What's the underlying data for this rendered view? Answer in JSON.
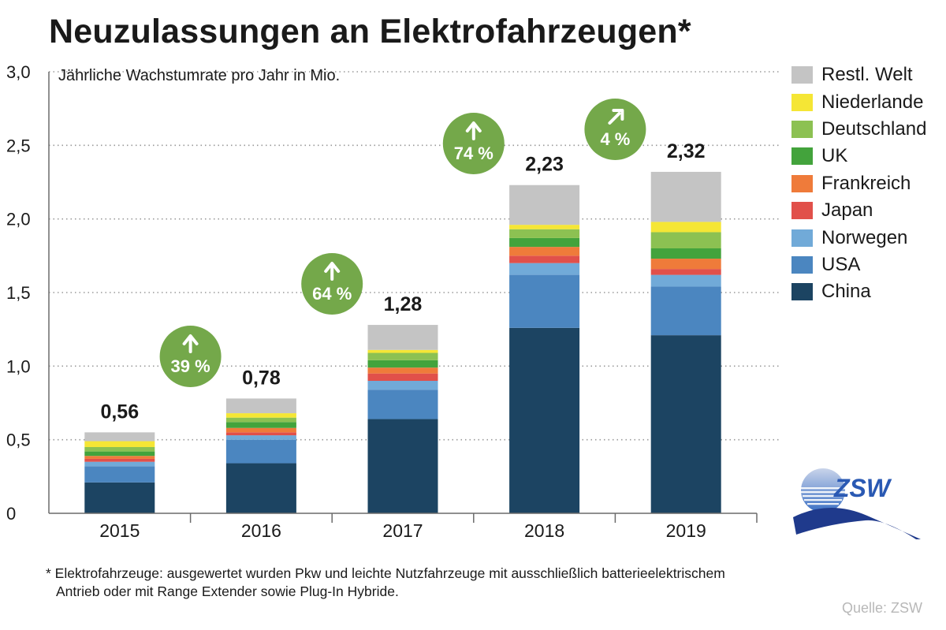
{
  "title": "Neuzulassungen an Elektrofahrzeugen*",
  "footnote": {
    "line1": "* Elektrofahrzeuge: ausgewertet wurden Pkw und leichte Nutzfahrzeuge mit ausschließlich batterieelektrischem",
    "line2": "Antrieb oder mit Range Extender sowie Plug-In Hybride."
  },
  "source": "Quelle: ZSW",
  "logo": {
    "text": "ZSW",
    "colors": [
      "#1f3a8c",
      "#3a6fc4",
      "#c9d4ea"
    ]
  },
  "growth_badges": [
    {
      "label": "39 %",
      "between": [
        "2015",
        "2016"
      ],
      "icon": "arrow-up-icon",
      "color": "#74a84a"
    },
    {
      "label": "64 %",
      "between": [
        "2016",
        "2017"
      ],
      "icon": "arrow-up-icon",
      "color": "#74a84a"
    },
    {
      "label": "74 %",
      "between": [
        "2017",
        "2018"
      ],
      "icon": "arrow-up-icon",
      "color": "#74a84a"
    },
    {
      "label": "4 %",
      "between": [
        "2018",
        "2019"
      ],
      "icon": "arrow-up-right-icon",
      "color": "#74a84a"
    }
  ],
  "chart_data": {
    "type": "bar",
    "stacked": true,
    "title": "Neuzulassungen an Elektrofahrzeugen*",
    "ylabel": "Jährliche Wachstumrate pro Jahr in Mio.",
    "xlabel": "",
    "categories": [
      "2015",
      "2016",
      "2017",
      "2018",
      "2019"
    ],
    "ylim": [
      0,
      3.0
    ],
    "yticks": [
      0,
      0.5,
      1.0,
      1.5,
      2.0,
      2.5,
      3.0
    ],
    "ytick_labels": [
      "0",
      "0,5",
      "1,0",
      "1,5",
      "2,0",
      "2,5",
      "3,0"
    ],
    "grid": "horizontal dotted",
    "legend_position": "right",
    "totals": [
      "0,56",
      "0,78",
      "1,28",
      "2,23",
      "2,32"
    ],
    "series": [
      {
        "name": "China",
        "color": "#1c4462",
        "values": [
          0.21,
          0.34,
          0.64,
          1.26,
          1.21
        ]
      },
      {
        "name": "USA",
        "color": "#4b86c0",
        "values": [
          0.11,
          0.16,
          0.2,
          0.36,
          0.33
        ]
      },
      {
        "name": "Norwegen",
        "color": "#71aad8",
        "values": [
          0.03,
          0.03,
          0.06,
          0.08,
          0.08
        ]
      },
      {
        "name": "Japan",
        "color": "#e1504a",
        "values": [
          0.02,
          0.02,
          0.05,
          0.05,
          0.04
        ]
      },
      {
        "name": "Frankreich",
        "color": "#ef7b3a",
        "values": [
          0.02,
          0.03,
          0.04,
          0.06,
          0.07
        ]
      },
      {
        "name": "UK",
        "color": "#43a33c",
        "values": [
          0.03,
          0.04,
          0.05,
          0.06,
          0.07
        ]
      },
      {
        "name": "Deutschland",
        "color": "#8cc152",
        "values": [
          0.03,
          0.03,
          0.05,
          0.06,
          0.11
        ]
      },
      {
        "name": "Niederlande",
        "color": "#f5e635",
        "values": [
          0.04,
          0.03,
          0.02,
          0.03,
          0.07
        ]
      },
      {
        "name": "Restl. Welt",
        "color": "#c4c4c4",
        "values": [
          0.06,
          0.1,
          0.17,
          0.27,
          0.34
        ]
      }
    ]
  }
}
